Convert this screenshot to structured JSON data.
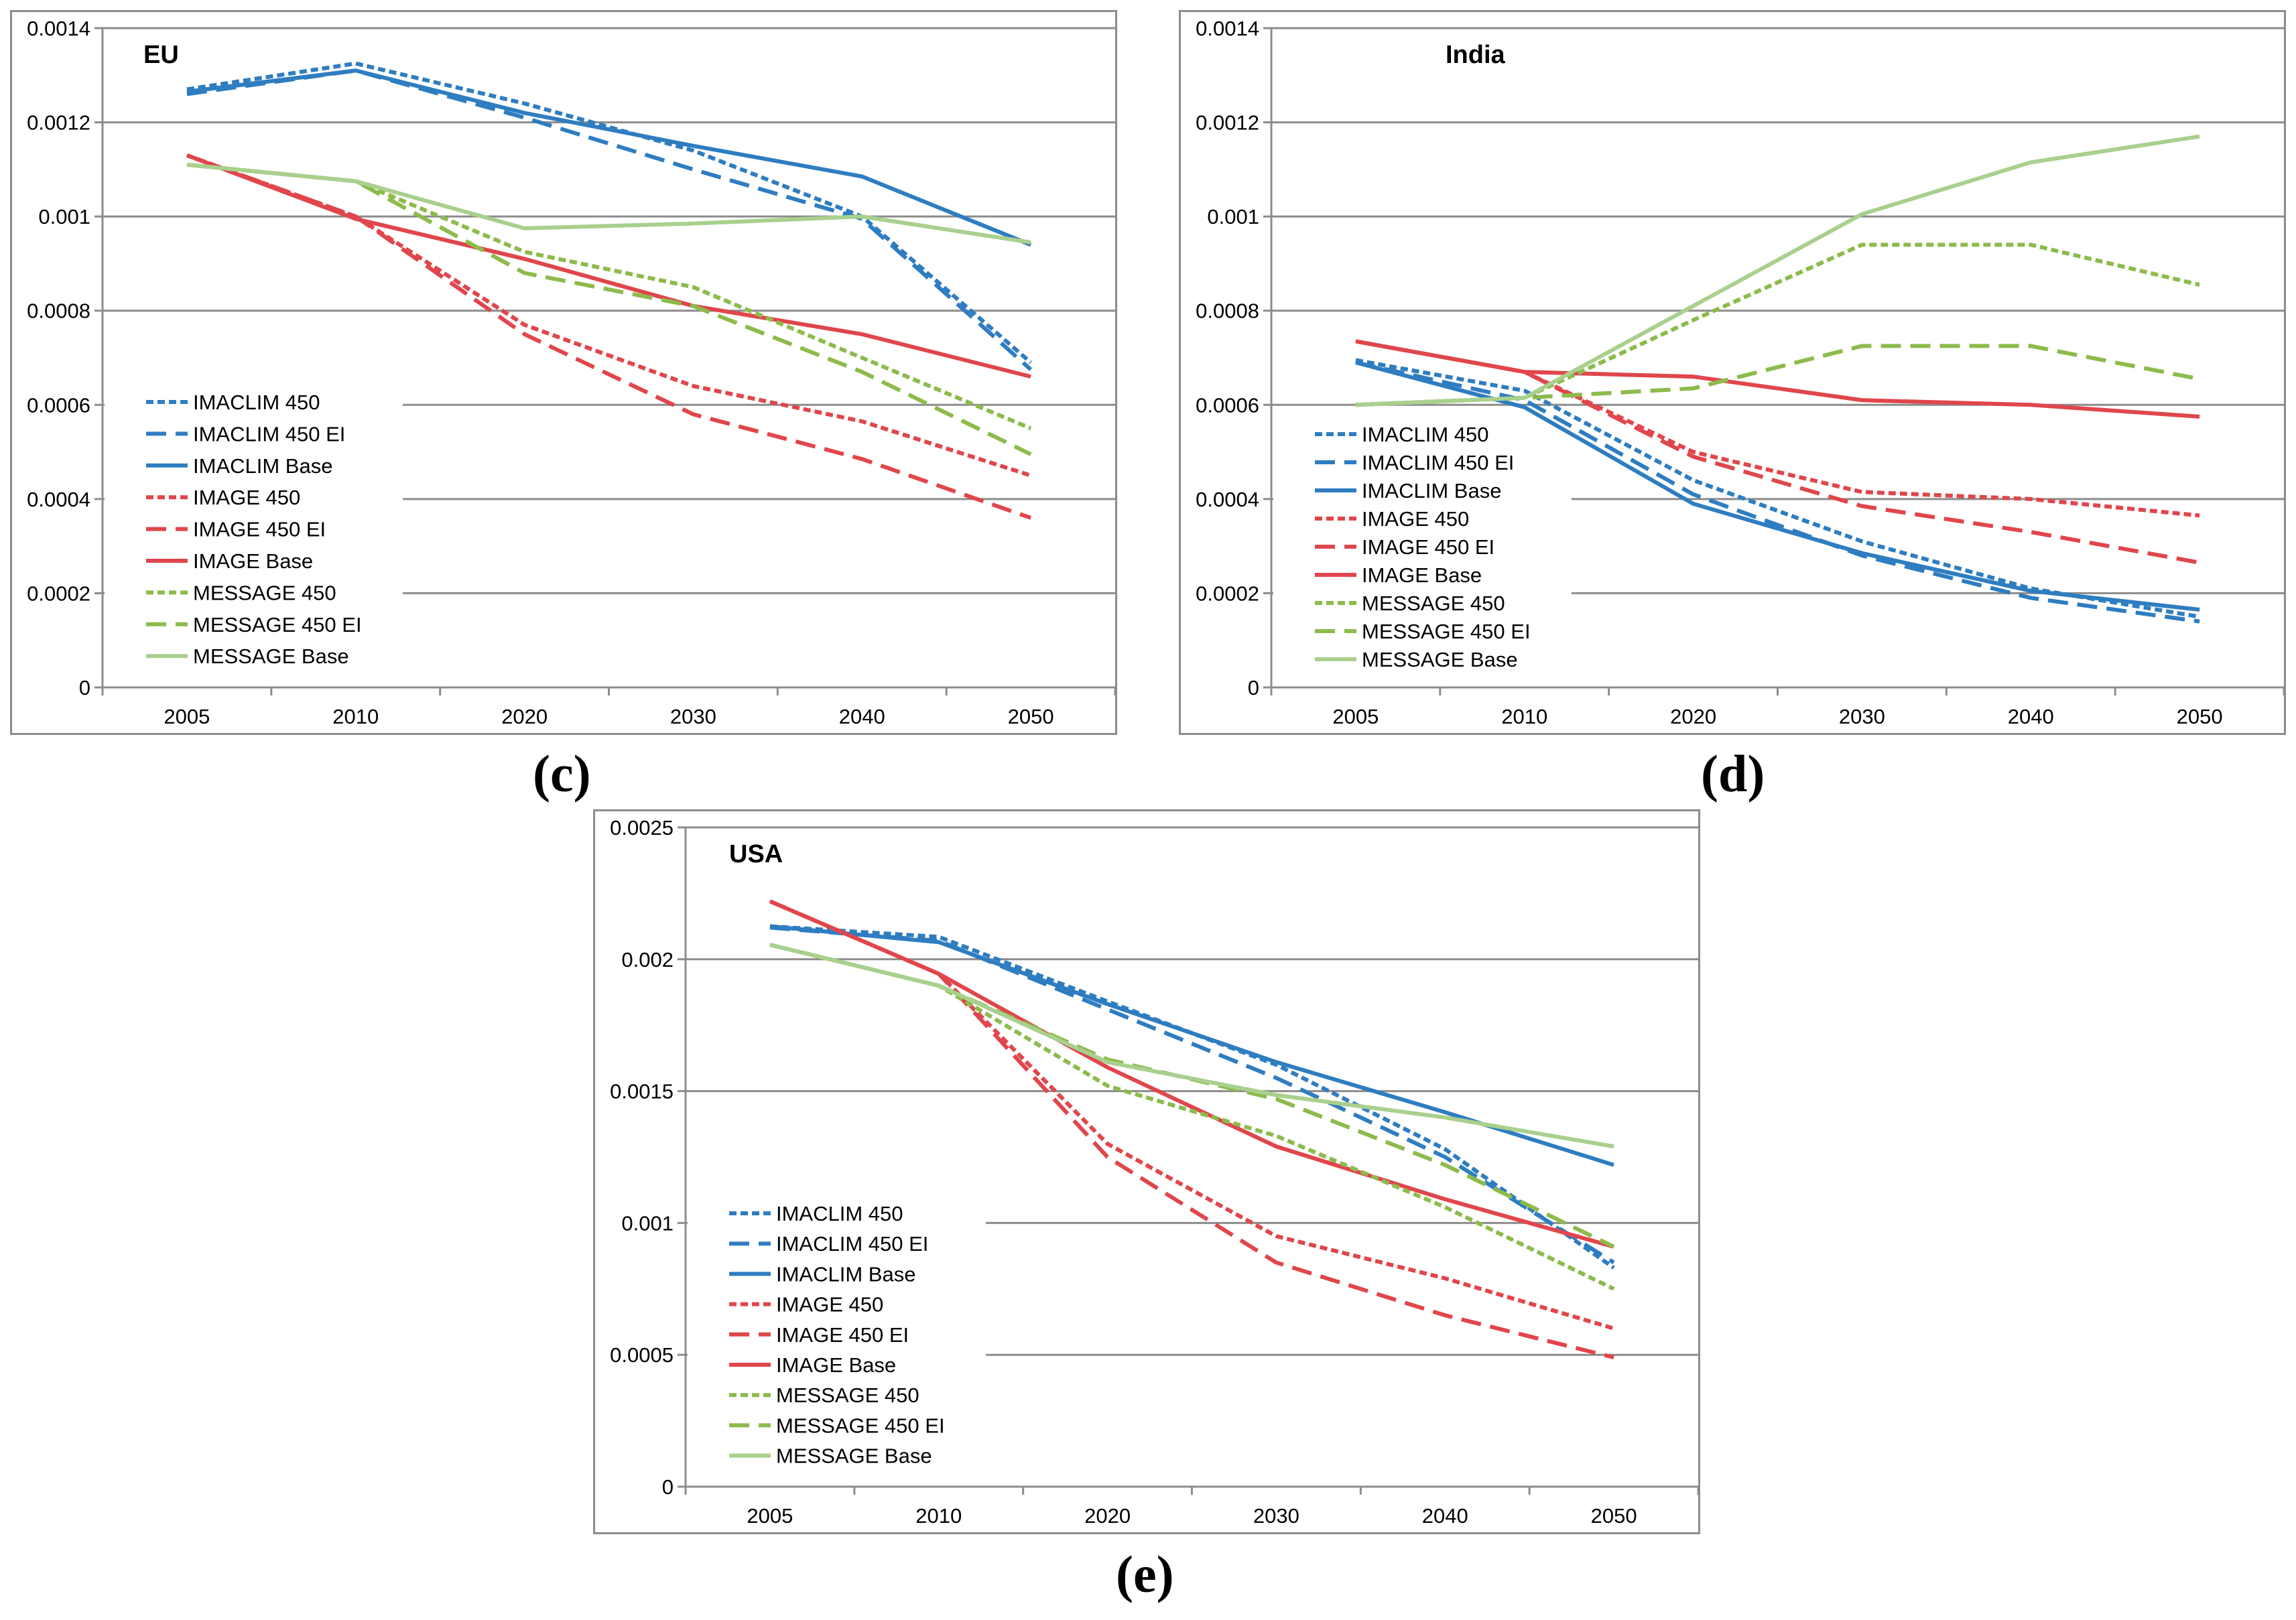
{
  "panel_labels": {
    "c": "(c)",
    "d": "(d)",
    "e": "(e)"
  },
  "legend_styles": {
    "IMACLIM": "#2e7dc1",
    "IMAGE": "#e0464b",
    "MESSAGE": "#8cbb4b",
    "MESSAGE_BASE": "#a9d08e"
  },
  "chart_data": [
    {
      "type": "line",
      "title": "EU",
      "xlabel": "",
      "ylabel": "",
      "categories": [
        "2005",
        "2010",
        "2020",
        "2030",
        "2040",
        "2050"
      ],
      "ylim": [
        0,
        0.0014
      ],
      "yticks": [
        "0",
        "0.0002",
        "0.0004",
        "0.0006",
        "0.0008",
        "0.001",
        "0.0012",
        "0.0014"
      ],
      "grid": true,
      "legend_placement": "bottom-left",
      "series": [
        {
          "name": "IMACLIM 450",
          "color": "#2e7dc1",
          "style": "dot",
          "values": [
            0.00127,
            0.001325,
            0.00124,
            0.00114,
            0.001,
            0.00069
          ]
        },
        {
          "name": "IMACLIM 450 EI",
          "color": "#2e7dc1",
          "style": "dash",
          "values": [
            0.00126,
            0.00131,
            0.00121,
            0.0011,
            0.000995,
            0.000675
          ]
        },
        {
          "name": "IMACLIM Base",
          "color": "#2e7dc1",
          "style": "solid",
          "values": [
            0.001265,
            0.00131,
            0.00122,
            0.00115,
            0.001085,
            0.00094
          ]
        },
        {
          "name": "IMAGE 450",
          "color": "#e0464b",
          "style": "dot",
          "values": [
            0.00113,
            0.001,
            0.00077,
            0.00064,
            0.000565,
            0.00045
          ]
        },
        {
          "name": "IMAGE 450 EI",
          "color": "#e0464b",
          "style": "dash",
          "values": [
            0.00113,
            0.001,
            0.00075,
            0.00058,
            0.000485,
            0.00036
          ]
        },
        {
          "name": "IMAGE Base",
          "color": "#e0464b",
          "style": "solid",
          "values": [
            0.00113,
            0.000995,
            0.00091,
            0.00081,
            0.00075,
            0.00066
          ]
        },
        {
          "name": "MESSAGE 450",
          "color": "#8cbb4b",
          "style": "dot",
          "values": [
            0.00111,
            0.001075,
            0.000925,
            0.00085,
            0.0007,
            0.00055
          ]
        },
        {
          "name": "MESSAGE 450 EI",
          "color": "#8cbb4b",
          "style": "dash",
          "values": [
            0.00111,
            0.001075,
            0.00088,
            0.00081,
            0.00067,
            0.000495
          ]
        },
        {
          "name": "MESSAGE Base",
          "color": "#a9d08e",
          "style": "solid",
          "values": [
            0.00111,
            0.001075,
            0.000975,
            0.000985,
            0.001,
            0.000945
          ]
        }
      ]
    },
    {
      "type": "line",
      "title": "India",
      "xlabel": "",
      "ylabel": "",
      "categories": [
        "2005",
        "2010",
        "2020",
        "2030",
        "2040",
        "2050"
      ],
      "ylim": [
        0,
        0.0014
      ],
      "yticks": [
        "0",
        "0.0002",
        "0.0004",
        "0.0006",
        "0.0008",
        "0.001",
        "0.0012",
        "0.0014"
      ],
      "grid": true,
      "legend_placement": "bottom-left",
      "series": [
        {
          "name": "IMACLIM 450",
          "color": "#2e7dc1",
          "style": "dot",
          "values": [
            0.000695,
            0.00063,
            0.00044,
            0.00031,
            0.00021,
            0.00015
          ]
        },
        {
          "name": "IMACLIM 450 EI",
          "color": "#2e7dc1",
          "style": "dash",
          "values": [
            0.00069,
            0.00061,
            0.00041,
            0.00028,
            0.00019,
            0.00014
          ]
        },
        {
          "name": "IMACLIM Base",
          "color": "#2e7dc1",
          "style": "solid",
          "values": [
            0.00069,
            0.000595,
            0.00039,
            0.000285,
            0.000205,
            0.000165
          ]
        },
        {
          "name": "IMAGE 450",
          "color": "#e0464b",
          "style": "dot",
          "values": [
            0.000735,
            0.00067,
            0.0005,
            0.000415,
            0.0004,
            0.000365
          ]
        },
        {
          "name": "IMAGE 450 EI",
          "color": "#e0464b",
          "style": "dash",
          "values": [
            0.000735,
            0.00067,
            0.00049,
            0.000385,
            0.00033,
            0.000265
          ]
        },
        {
          "name": "IMAGE Base",
          "color": "#e0464b",
          "style": "solid",
          "values": [
            0.000735,
            0.00067,
            0.00066,
            0.00061,
            0.0006,
            0.000575
          ]
        },
        {
          "name": "MESSAGE 450",
          "color": "#8cbb4b",
          "style": "dot",
          "values": [
            0.0006,
            0.000615,
            0.00078,
            0.00094,
            0.00094,
            0.000855
          ]
        },
        {
          "name": "MESSAGE 450 EI",
          "color": "#8cbb4b",
          "style": "dash",
          "values": [
            0.0006,
            0.000615,
            0.000635,
            0.000725,
            0.000725,
            0.000655
          ]
        },
        {
          "name": "MESSAGE Base",
          "color": "#a9d08e",
          "style": "solid",
          "values": [
            0.0006,
            0.000615,
            0.00081,
            0.001005,
            0.001115,
            0.00117
          ]
        }
      ]
    },
    {
      "type": "line",
      "title": "USA",
      "xlabel": "",
      "ylabel": "",
      "categories": [
        "2005",
        "2010",
        "2020",
        "2030",
        "2040",
        "2050"
      ],
      "ylim": [
        0,
        0.0025
      ],
      "yticks": [
        "0",
        "0.0005",
        "0.001",
        "0.0015",
        "0.002",
        "0.0025"
      ],
      "grid": true,
      "legend_placement": "bottom-left",
      "series": [
        {
          "name": "IMACLIM 450",
          "color": "#2e7dc1",
          "style": "dot",
          "values": [
            0.002125,
            0.002085,
            0.00184,
            0.0016,
            0.00128,
            0.00083
          ]
        },
        {
          "name": "IMACLIM 450 EI",
          "color": "#2e7dc1",
          "style": "dash",
          "values": [
            0.00212,
            0.00207,
            0.00181,
            0.00155,
            0.00125,
            0.00085
          ]
        },
        {
          "name": "IMACLIM Base",
          "color": "#2e7dc1",
          "style": "solid",
          "values": [
            0.002125,
            0.002065,
            0.00183,
            0.00161,
            0.00142,
            0.00122
          ]
        },
        {
          "name": "IMAGE 450",
          "color": "#e0464b",
          "style": "dot",
          "values": [
            0.00222,
            0.001945,
            0.0013,
            0.00095,
            0.00079,
            0.0006
          ]
        },
        {
          "name": "IMAGE 450 EI",
          "color": "#e0464b",
          "style": "dash",
          "values": [
            0.00222,
            0.001945,
            0.00125,
            0.00085,
            0.00065,
            0.00049
          ]
        },
        {
          "name": "IMAGE Base",
          "color": "#e0464b",
          "style": "solid",
          "values": [
            0.00222,
            0.001945,
            0.00159,
            0.00129,
            0.00109,
            0.00091
          ]
        },
        {
          "name": "MESSAGE 450",
          "color": "#8cbb4b",
          "style": "dot",
          "values": [
            0.002055,
            0.0019,
            0.00152,
            0.00133,
            0.00106,
            0.00075
          ]
        },
        {
          "name": "MESSAGE 450 EI",
          "color": "#8cbb4b",
          "style": "dash",
          "values": [
            0.002055,
            0.0019,
            0.00162,
            0.00147,
            0.00122,
            0.00091
          ]
        },
        {
          "name": "MESSAGE Base",
          "color": "#a9d08e",
          "style": "solid",
          "values": [
            0.002055,
            0.0019,
            0.00161,
            0.001485,
            0.0014,
            0.00129
          ]
        }
      ]
    }
  ]
}
